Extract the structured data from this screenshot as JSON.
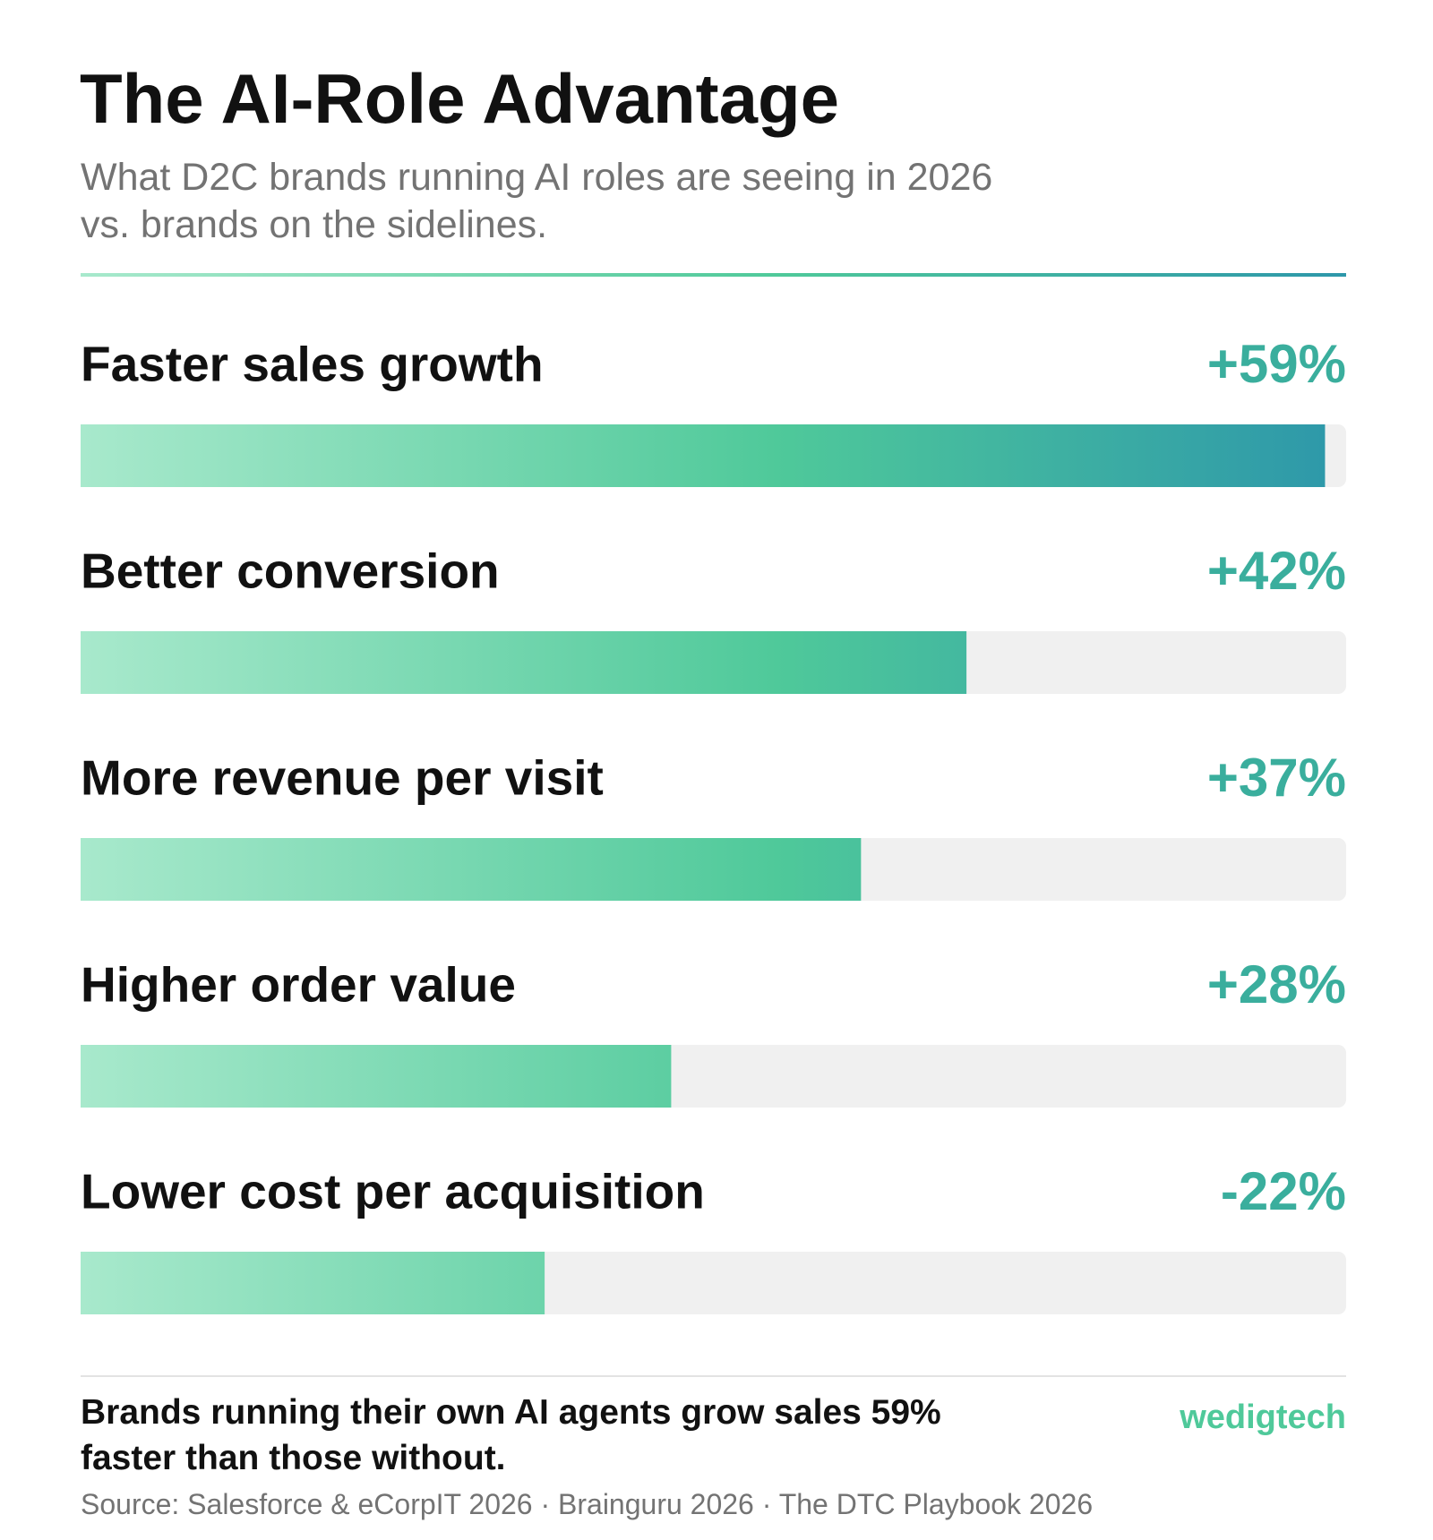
{
  "chart_data": {
    "type": "bar",
    "orientation": "horizontal",
    "title": "The AI-Role Advantage",
    "subtitle": "What D2C brands running AI roles are seeing in 2026 vs. brands on the sidelines.",
    "categories": [
      "Faster sales growth",
      "Better conversion",
      "More revenue per visit",
      "Higher order value",
      "Lower cost per acquisition"
    ],
    "values": [
      59,
      42,
      37,
      28,
      -22
    ],
    "value_labels": [
      "+59%",
      "+42%",
      "+37%",
      "+28%",
      "-22%"
    ],
    "xlim": [
      0,
      60
    ],
    "colors": [
      "#a8e9cc",
      "#4fc99a",
      "#2d97aa"
    ],
    "track_color": "#f0f0f0",
    "label_color": "#3aae9d",
    "footnote": "Brands running their own AI agents grow sales 59% faster than those without.",
    "brand": "wedigtech",
    "source": "Source: Salesforce & eCorpIT 2026 · Brainguru 2026 · The DTC Playbook 2026"
  }
}
